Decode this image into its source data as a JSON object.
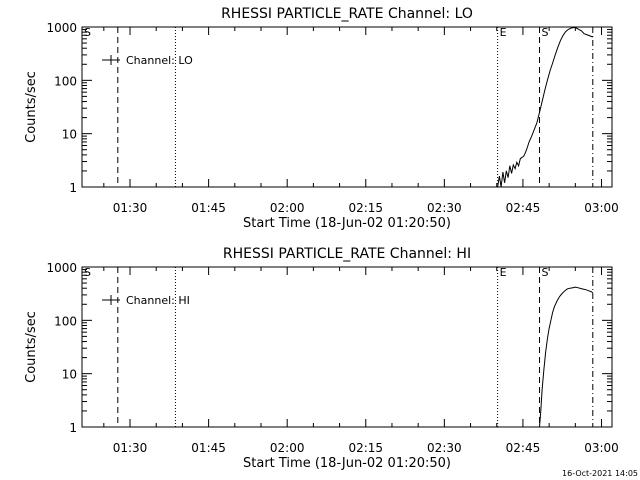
{
  "footer": {
    "date_stamp": "16-Oct-2021 14:05"
  },
  "chart_data": [
    {
      "type": "line",
      "title": "RHESSI PARTICLE_RATE Channel: LO",
      "xlabel": "Start Time (18-Jun-02 01:20:50)",
      "ylabel": "Counts/sec",
      "yscale": "log",
      "xlim": [
        "01:20:50",
        "03:02:00"
      ],
      "ylim": [
        1,
        1000
      ],
      "xticks": [
        "01:30",
        "01:45",
        "02:00",
        "02:15",
        "02:30",
        "02:45",
        "03:00"
      ],
      "yticks": [
        "1",
        "10",
        "100",
        "1000"
      ],
      "legend": {
        "label": "Channel: LO",
        "position": "top-left"
      },
      "markers": [
        {
          "label": "S",
          "time": "01:20:50",
          "style": "none"
        },
        {
          "label": "",
          "time": "01:27:40",
          "style": "dashed"
        },
        {
          "label": "",
          "time": "01:38:40",
          "style": "dotted"
        },
        {
          "label": "E",
          "time": "02:40:10",
          "style": "dotted"
        },
        {
          "label": "S",
          "time": "02:48:10",
          "style": "dashed"
        },
        {
          "label": "",
          "time": "02:58:20",
          "style": "dash-dot"
        }
      ],
      "series": [
        {
          "x": [
            "02:40:10",
            "02:40:30",
            "02:40:50",
            "02:41:10",
            "02:41:30",
            "02:41:50",
            "02:42:10",
            "02:42:30",
            "02:42:50",
            "02:43:10",
            "02:43:30",
            "02:43:50",
            "02:44:10",
            "02:44:30",
            "02:44:50",
            "02:45:10",
            "02:45:30",
            "02:45:50",
            "02:46:10",
            "02:46:40",
            "02:47:10",
            "02:47:40",
            "02:48:10",
            "02:48:40",
            "02:49:10",
            "02:49:40",
            "02:50:10",
            "02:50:40",
            "02:51:10",
            "02:51:40",
            "02:52:10",
            "02:52:40",
            "02:53:10",
            "02:53:40",
            "02:54:10",
            "02:54:40",
            "02:55:10",
            "02:55:40",
            "02:56:10",
            "02:56:40",
            "02:57:10",
            "02:57:40",
            "02:58:20"
          ],
          "y": [
            1.0,
            1.6,
            1.0,
            1.9,
            1.2,
            2.0,
            1.5,
            2.5,
            1.8,
            2.6,
            2.2,
            2.9,
            2.5,
            3.4,
            3.6,
            3.8,
            4.5,
            5.5,
            7,
            9,
            12,
            16,
            25,
            40,
            65,
            100,
            150,
            210,
            300,
            420,
            560,
            700,
            820,
            900,
            950,
            980,
            960,
            900,
            850,
            750,
            720,
            690,
            650
          ]
        }
      ]
    },
    {
      "type": "line",
      "title": "RHESSI PARTICLE_RATE Channel: HI",
      "xlabel": "Start Time (18-Jun-02 01:20:50)",
      "ylabel": "Counts/sec",
      "yscale": "log",
      "xlim": [
        "01:20:50",
        "03:02:00"
      ],
      "ylim": [
        1,
        1000
      ],
      "xticks": [
        "01:30",
        "01:45",
        "02:00",
        "02:15",
        "02:30",
        "02:45",
        "03:00"
      ],
      "yticks": [
        "1",
        "10",
        "100",
        "1000"
      ],
      "legend": {
        "label": "Channel: HI",
        "position": "top-left"
      },
      "markers": [
        {
          "label": "S",
          "time": "01:20:50",
          "style": "none"
        },
        {
          "label": "",
          "time": "01:27:40",
          "style": "dashed"
        },
        {
          "label": "",
          "time": "01:38:40",
          "style": "dotted"
        },
        {
          "label": "E",
          "time": "02:40:10",
          "style": "dotted"
        },
        {
          "label": "S",
          "time": "02:48:10",
          "style": "dashed"
        },
        {
          "label": "",
          "time": "02:58:20",
          "style": "dash-dot"
        }
      ],
      "series": [
        {
          "x": [
            "02:48:10",
            "02:48:25",
            "02:48:40",
            "02:49:00",
            "02:49:20",
            "02:49:40",
            "02:50:00",
            "02:50:20",
            "02:50:40",
            "02:51:00",
            "02:51:30",
            "02:52:00",
            "02:52:30",
            "02:53:00",
            "02:53:30",
            "02:54:00",
            "02:54:30",
            "02:55:00",
            "02:55:30",
            "02:56:00",
            "02:56:30",
            "02:57:00",
            "02:57:30",
            "02:58:00",
            "02:58:20"
          ],
          "y": [
            1.0,
            2.0,
            5,
            12,
            25,
            45,
            70,
            100,
            140,
            180,
            230,
            280,
            320,
            360,
            390,
            400,
            410,
            420,
            410,
            395,
            385,
            375,
            360,
            345,
            330
          ]
        }
      ]
    }
  ]
}
